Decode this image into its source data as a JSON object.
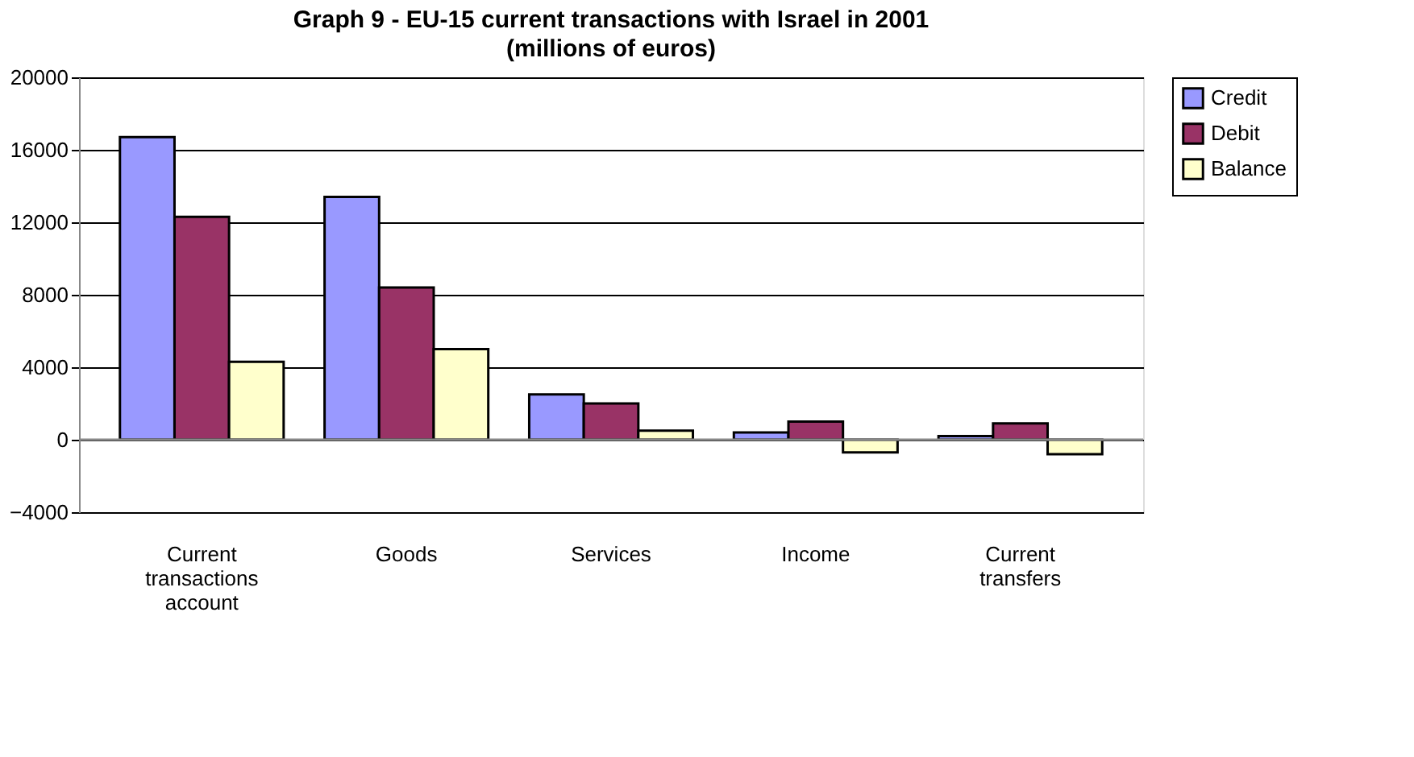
{
  "chart_data": {
    "type": "bar",
    "title": "Graph 9 - EU-15 current transactions with Israel in 2001",
    "subtitle": "(millions of euros)",
    "categories": [
      "Current transactions account",
      "Goods",
      "Services",
      "Income",
      "Current transfers"
    ],
    "series": [
      {
        "name": "Credit",
        "color": "#9999ff",
        "values": [
          16700,
          13400,
          2500,
          400,
          200
        ]
      },
      {
        "name": "Debit",
        "color": "#993366",
        "values": [
          12300,
          8400,
          2000,
          1000,
          900
        ]
      },
      {
        "name": "Balance",
        "color": "#ffffcc",
        "values": [
          4300,
          5000,
          500,
          -700,
          -800
        ]
      }
    ],
    "ylim": [
      -4000,
      20000
    ],
    "yticks": [
      -4000,
      0,
      4000,
      8000,
      12000,
      16000,
      20000
    ],
    "grid": "y",
    "legend": "right"
  }
}
